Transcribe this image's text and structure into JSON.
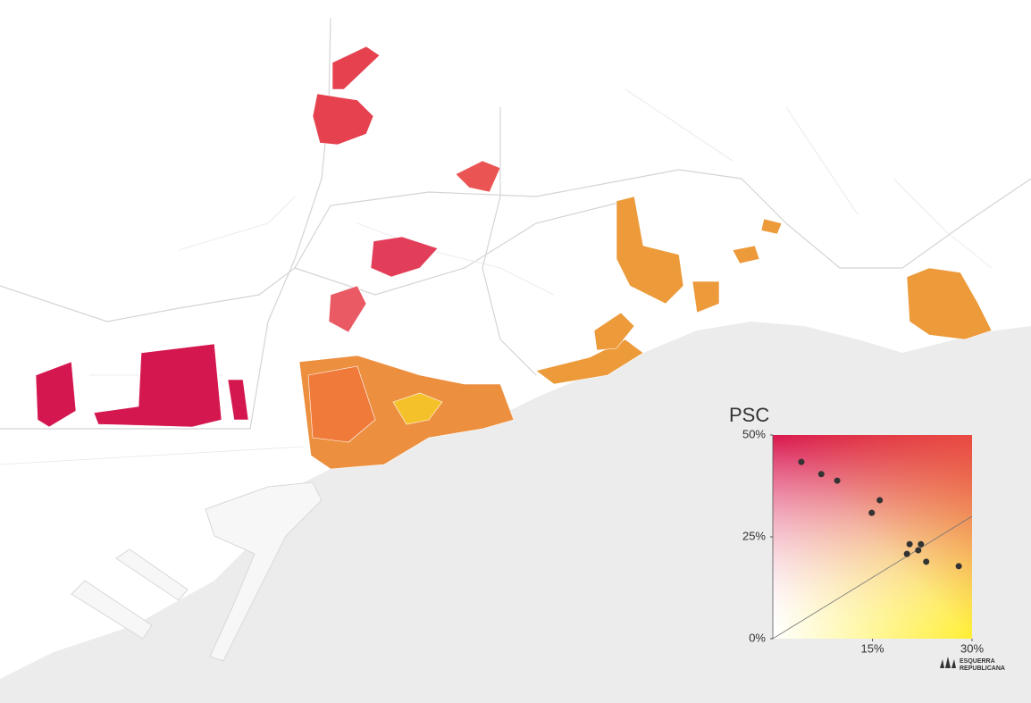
{
  "chart_data": {
    "type": "scatter",
    "title": "PSC",
    "x": [
      4.3,
      7.3,
      9.7,
      16.1,
      14.9,
      20.6,
      22.3,
      20.2,
      21.9,
      23.1,
      28.0
    ],
    "values": [
      43.4,
      40.4,
      38.8,
      34.0,
      30.9,
      23.2,
      23.2,
      20.8,
      21.7,
      18.9,
      17.8
    ],
    "color": "#333333",
    "xlim": [
      0,
      30
    ],
    "ylim": [
      0,
      50
    ],
    "xticks": [
      {
        "value": 15,
        "label": "15%"
      },
      {
        "value": 30,
        "label": "30%"
      }
    ],
    "yticks": [
      {
        "value": 0,
        "label": "0%"
      },
      {
        "value": 25,
        "label": "25%"
      },
      {
        "value": 50,
        "label": "50%"
      }
    ]
  },
  "logo": [
    "ESQUERRA",
    "REPUBLICANA"
  ]
}
